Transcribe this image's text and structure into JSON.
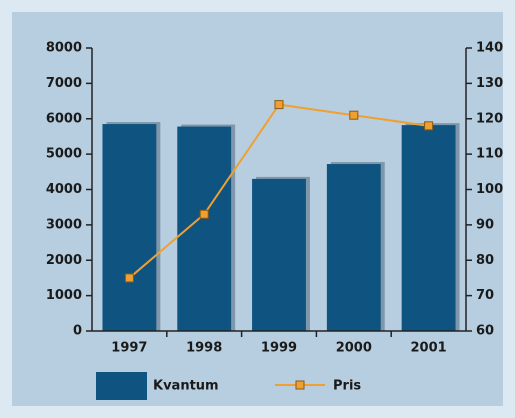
{
  "chart_data": {
    "type": "bar_line",
    "categories": [
      "1997",
      "1998",
      "1999",
      "2000",
      "2001"
    ],
    "series": [
      {
        "name": "Kvantum",
        "color": "#0f5480",
        "values": [
          5850,
          5780,
          4300,
          4720,
          5820
        ]
      },
      {
        "name": "Pris",
        "color": "#f0a030",
        "axis": "y2",
        "values": [
          75,
          93,
          124,
          121,
          118
        ]
      }
    ],
    "ylim": [
      0,
      8000
    ],
    "yticks": [
      0,
      1000,
      2000,
      3000,
      4000,
      5000,
      6000,
      7000,
      8000
    ],
    "y2lim": [
      60,
      140
    ],
    "y2ticks": [
      60,
      70,
      80,
      90,
      100,
      110,
      120,
      130,
      140
    ]
  }
}
